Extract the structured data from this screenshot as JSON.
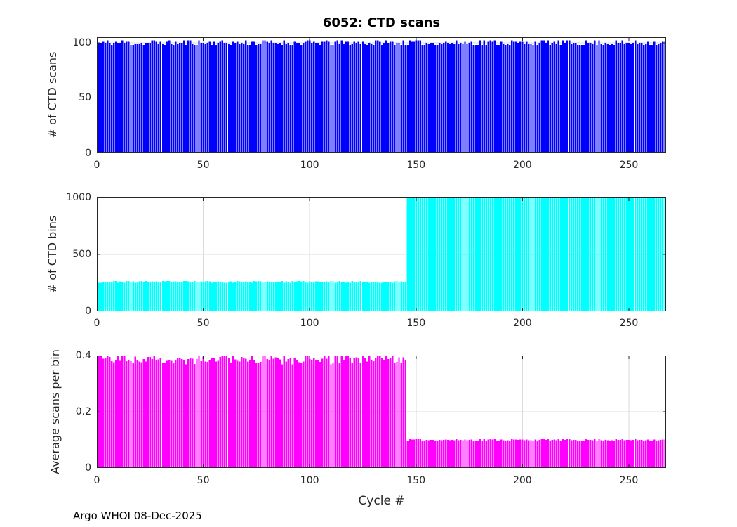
{
  "figure": {
    "title": "6052: CTD scans",
    "xlabel": "Cycle #",
    "footer": "Argo WHOI 08-Dec-2025",
    "background": "#FFFFFF",
    "axis_color": "#262626",
    "grid_color": "#DBDBDB",
    "text_color": "#262626"
  },
  "chart_data": [
    {
      "type": "bar",
      "name": "ctd-scans",
      "title": "6052: CTD scans",
      "ylabel": "# of CTD scans",
      "bar_color": "#0000FF",
      "xlim": [
        0,
        267.5
      ],
      "ylim": [
        0,
        105
      ],
      "xticks": [
        0,
        50,
        100,
        150,
        200,
        250
      ],
      "yticks": [
        0,
        50,
        100
      ],
      "grid": true,
      "n_cycles": 267,
      "bar_width": 0.8,
      "values_spec": {
        "seed": 11,
        "segments": [
          {
            "from": 1,
            "to": 267,
            "min": 98,
            "max": 102,
            "about": "~100 CTD scans every cycle"
          }
        ]
      }
    },
    {
      "type": "bar",
      "name": "ctd-bins",
      "ylabel": "# of CTD bins",
      "bar_color": "#00FFFF",
      "xlim": [
        0,
        267.5
      ],
      "ylim": [
        0,
        1000
      ],
      "xticks": [
        0,
        50,
        100,
        150,
        200,
        250
      ],
      "yticks": [
        0,
        500,
        1000
      ],
      "grid": true,
      "n_cycles": 267,
      "bar_width": 0.8,
      "values_spec": {
        "seed": 23,
        "segments": [
          {
            "from": 1,
            "to": 145,
            "min": 250,
            "max": 266,
            "about": "~255 bins per cycle before cycle 146"
          },
          {
            "from": 146,
            "to": 267,
            "const": 1000,
            "about": "1000 bins per cycle from cycle 146 on"
          }
        ]
      }
    },
    {
      "type": "bar",
      "name": "avg-scans-per-bin",
      "ylabel": "Average scans per bin",
      "bar_color": "#FF00FF",
      "xlim": [
        0,
        267.5
      ],
      "ylim": [
        0,
        0.4
      ],
      "xticks": [
        0,
        50,
        100,
        150,
        200,
        250
      ],
      "yticks": [
        0,
        0.2,
        0.4
      ],
      "ytick_labels": [
        "0",
        "0.2",
        "0.4"
      ],
      "grid": true,
      "n_cycles": 267,
      "bar_width": 0.8,
      "values_spec": {
        "derived": "scans_divided_by_bins",
        "clamp_max": 0.3985,
        "about": "~0.39 scans/bin before cycle 146, ~0.10 after"
      }
    }
  ]
}
